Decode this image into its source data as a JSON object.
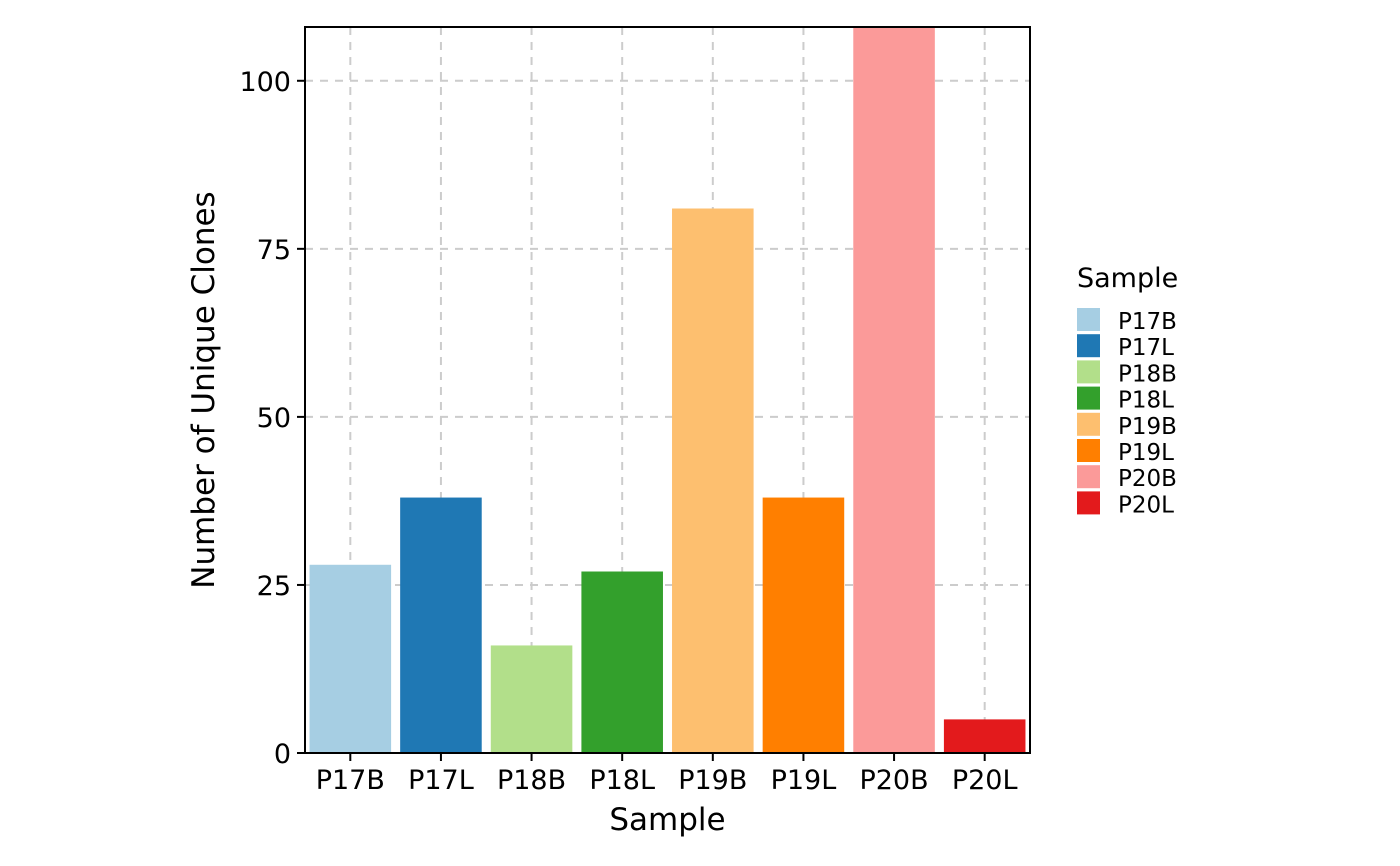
{
  "chart_data": {
    "type": "bar",
    "title": "",
    "xlabel": "Sample",
    "ylabel": "Number of Unique Clones",
    "categories": [
      "P17B",
      "P17L",
      "P18B",
      "P18L",
      "P19B",
      "P19L",
      "P20B",
      "P20L"
    ],
    "values": [
      28,
      38,
      16,
      27,
      81,
      38,
      108,
      5
    ],
    "colors": [
      "#a6cee3",
      "#1f78b4",
      "#b2df8a",
      "#33a02c",
      "#fdbf6f",
      "#ff7f00",
      "#fb9a99",
      "#e31a1c"
    ],
    "ylim": [
      0,
      108
    ],
    "yticks": [
      0,
      25,
      50,
      75,
      100
    ],
    "grid": true,
    "legend": {
      "title": "Sample",
      "position": "right",
      "entries": [
        "P17B",
        "P17L",
        "P18B",
        "P18L",
        "P19B",
        "P19L",
        "P20B",
        "P20L"
      ]
    }
  }
}
